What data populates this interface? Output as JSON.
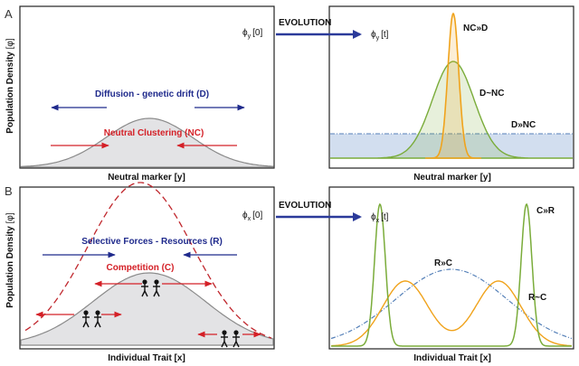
{
  "panel_labels": {
    "a": "A",
    "b": "B"
  },
  "y_axis": {
    "label": "Population Density",
    "phi": "[φ]"
  },
  "evolution_label": "EVOLUTION",
  "panel_a": {
    "left": {
      "x_label": "Neutral marker  [y]",
      "diffusion": "Diffusion - genetic drift (D)",
      "clustering": "Neutral Clustering  (NC)"
    },
    "right": {
      "x_label": "Neutral marker  [y]",
      "nc_d": "NC»D",
      "d_nc_sim": "D~NC",
      "d_nc": "D»NC"
    },
    "phi_start": {
      "main": "ϕ",
      "sub": "y",
      "arg": "[0]"
    },
    "phi_end": {
      "main": "ϕ",
      "sub": "y",
      "arg": "[t]"
    }
  },
  "panel_b": {
    "left": {
      "x_label": "Individual Trait  [x]",
      "selective": "Selective Forces - Resources (R)",
      "competition": "Competition (C)"
    },
    "right": {
      "x_label": "Individual Trait  [x]",
      "c_r": "C»R",
      "r_c": "R»C",
      "r_c_sim": "R~C"
    },
    "phi_start": {
      "main": "ϕ",
      "sub": "x",
      "arg": "[0]"
    },
    "phi_end": {
      "main": "ϕ",
      "sub": "x",
      "arg": "[t]"
    }
  },
  "colors": {
    "blue": "#1f2a8c",
    "red": "#d42027",
    "green": "#7aac3a",
    "orange": "#f0a31c",
    "gray_fill": "#e3e3e5",
    "gray_line": "#8a8a8a",
    "blue_fill": "#d2deef",
    "dash_blue": "#5580b8"
  }
}
